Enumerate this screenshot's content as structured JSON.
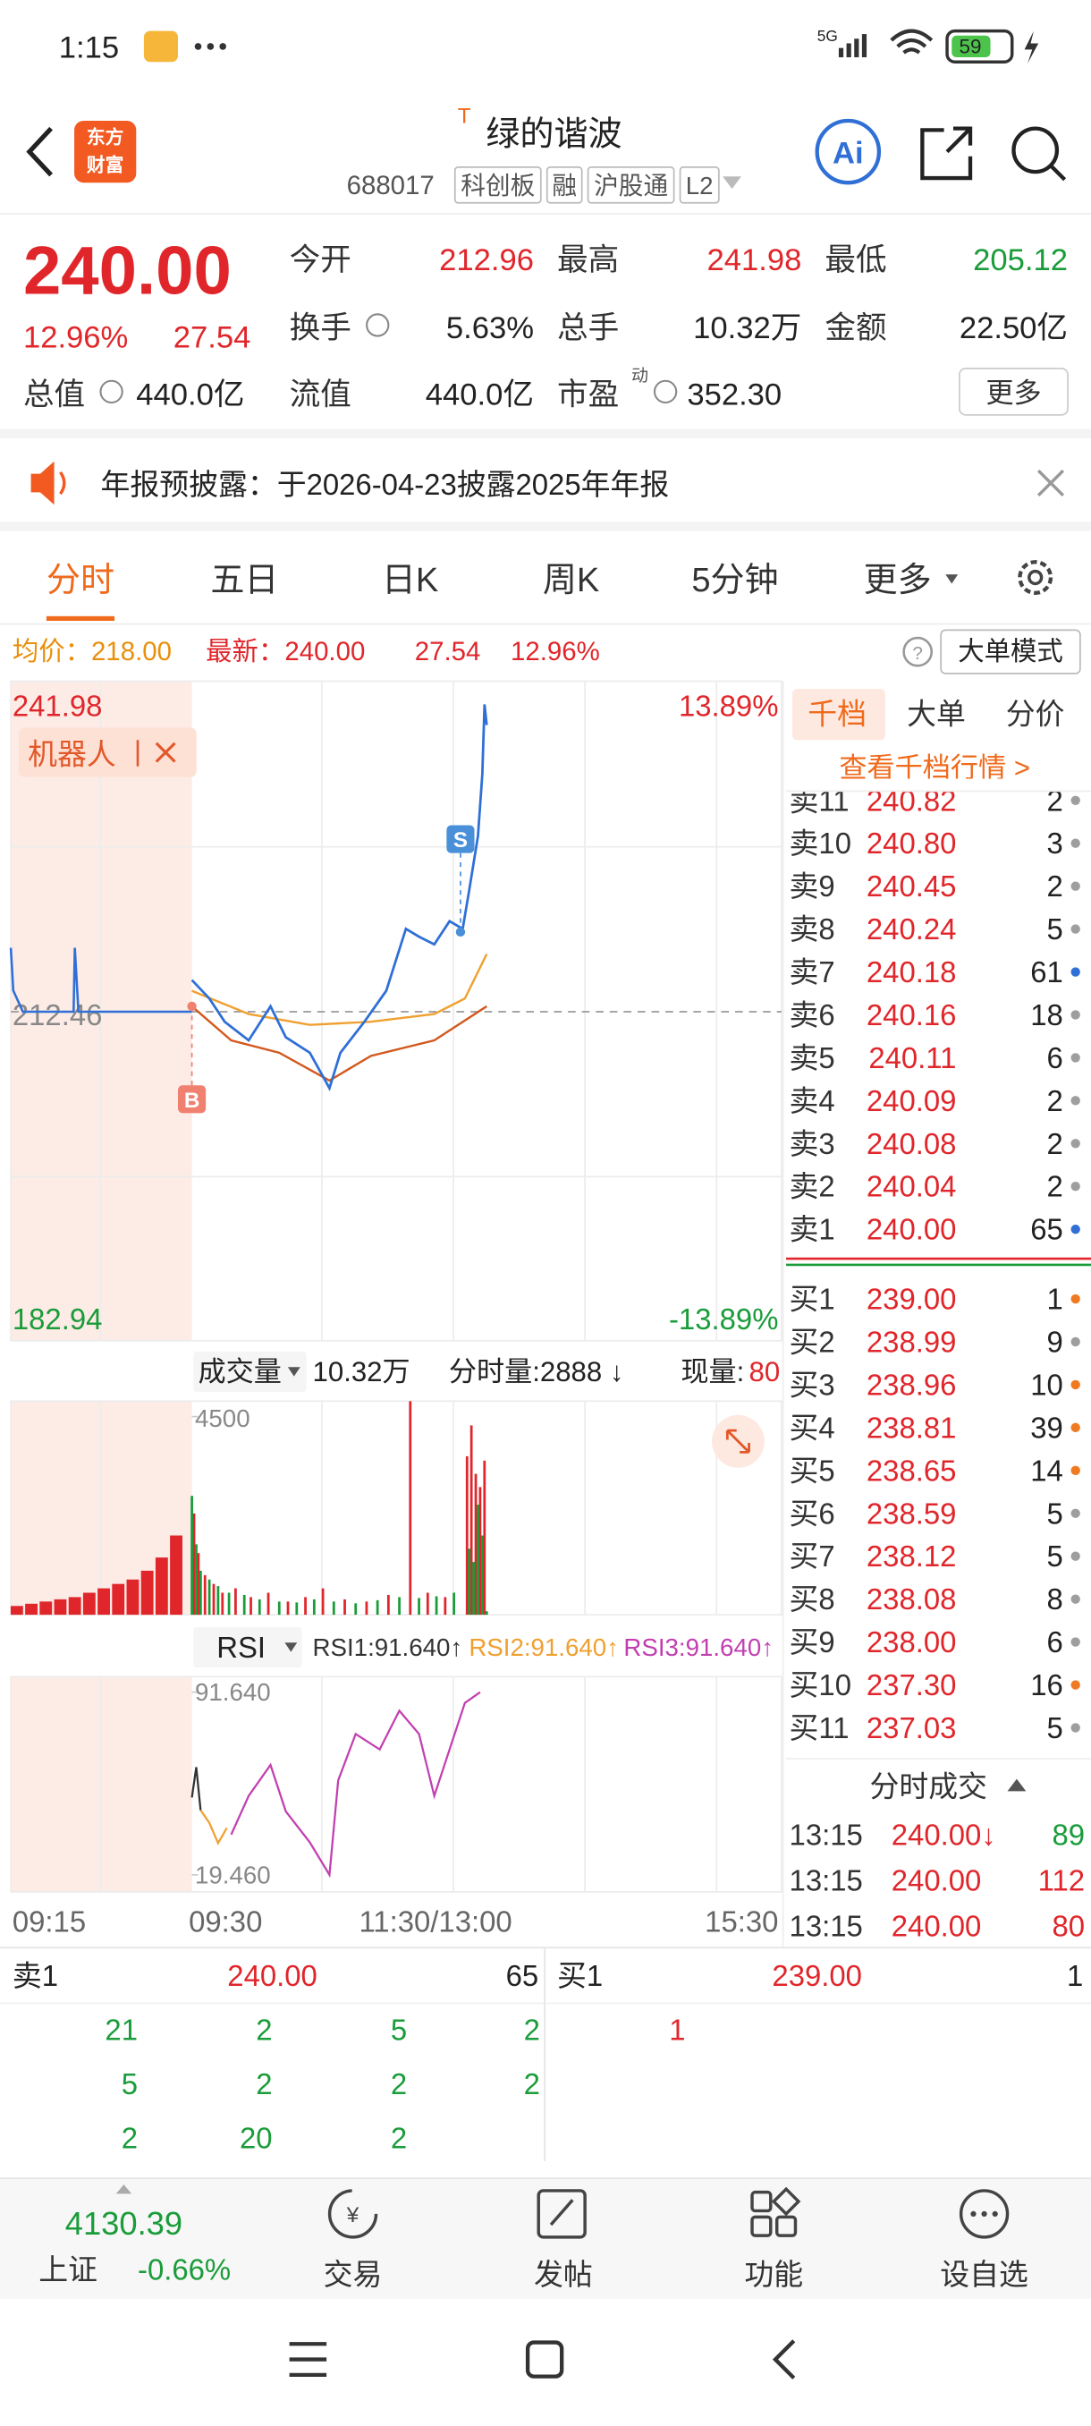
{
  "status_bar": {
    "time": "1:15",
    "network": "5G",
    "battery": "59"
  },
  "header": {
    "logo": [
      "东方",
      "财富"
    ],
    "t_mark": "T",
    "title": "绿的谐波",
    "code": "688017",
    "tags": [
      "科创板",
      "融",
      "沪股通",
      "L2"
    ],
    "ai": "Ai"
  },
  "quote": {
    "price": "240.00",
    "change_pct": "12.96%",
    "change": "27.54",
    "fields": [
      {
        "label": "今开",
        "value": "212.96",
        "color": "#e0262b"
      },
      {
        "label": "最高",
        "value": "241.98",
        "color": "#e0262b"
      },
      {
        "label": "最低",
        "value": "205.12",
        "color": "#1a9c3a"
      },
      {
        "label": "换手",
        "value": "5.63%",
        "color": "#222222",
        "info": true
      },
      {
        "label": "总手",
        "value": "10.32万",
        "color": "#222222"
      },
      {
        "label": "金额",
        "value": "22.50亿",
        "color": "#222222"
      },
      {
        "label": "总值",
        "value": "440.0亿",
        "color": "#222222",
        "info": true
      },
      {
        "label": "流值",
        "value": "440.0亿",
        "color": "#222222"
      },
      {
        "label": "市盈",
        "sup": "动",
        "value": "352.30",
        "color": "#222222",
        "info": true
      }
    ],
    "more": "更多"
  },
  "notice": {
    "text": "年报预披露：于2026-04-23披露2025年年报"
  },
  "tabs": {
    "items": [
      "分时",
      "五日",
      "日K",
      "周K",
      "5分钟",
      "更多"
    ],
    "active": 0
  },
  "info_bar": {
    "avg": "均价：218.00",
    "latest": "最新：240.00",
    "change": "27.54",
    "change_pct": "12.96%",
    "mode": "大单模式"
  },
  "chart_data": [
    {
      "type": "line",
      "xlim": [
        0,
        270
      ],
      "ylim": [
        182.94,
        241.98
      ],
      "prev_close": 212.46,
      "pct_labels": [
        "13.89%",
        "-13.89%"
      ],
      "x_labels": [
        "09:15",
        "09:30",
        "11:30/13:00",
        "15:30"
      ],
      "robot": "机器人",
      "premarket": {
        "xlim": [
          0,
          15
        ],
        "color": "#2f6fd6",
        "x": [
          0,
          0.2,
          1,
          5.2,
          5.3,
          5.6,
          15
        ],
        "values": [
          218.6,
          214.5,
          212.46,
          212.46,
          218.6,
          212.46,
          212.46
        ]
      },
      "series": [
        {
          "color": "#2f6fd6",
          "x": [
            0,
            8,
            15,
            26,
            36,
            43,
            54,
            63,
            68,
            79,
            89,
            98,
            104,
            111,
            118,
            124,
            127,
            131,
            133,
            134,
            135
          ],
          "values": [
            215.51,
            213.73,
            211.5,
            209.71,
            212.98,
            210.01,
            208.52,
            205.12,
            208.52,
            211.5,
            214.47,
            220.42,
            219.67,
            218.93,
            221.16,
            220.42,
            224.14,
            229.34,
            235.29,
            241.98,
            240.0
          ]
        },
        {
          "color": "#f0a030",
          "x": [
            0,
            26,
            54,
            82,
            111,
            125,
            135
          ],
          "values": [
            214.47,
            212.24,
            211.2,
            211.5,
            212.24,
            213.73,
            218.0
          ]
        },
        {
          "color": "#d2591e",
          "x": [
            0,
            18,
            40,
            63,
            82,
            111,
            135
          ],
          "values": [
            212.98,
            209.71,
            208.52,
            205.85,
            208.22,
            209.71,
            212.98
          ]
        }
      ],
      "markers": [
        {
          "label": "B",
          "x": 0,
          "value": 212.98,
          "color": "#f08070",
          "side": "below"
        },
        {
          "label": "S",
          "x": 123,
          "value": 220.12,
          "color": "#4a90d9",
          "side": "above"
        }
      ]
    },
    {
      "type": "bar",
      "name": "成交量",
      "total": "10.32万",
      "period": "分时量:2888 ↓",
      "now_label": "现量:",
      "now_value": "80",
      "xlim": [
        0,
        270
      ],
      "ylim": [
        0,
        4852
      ],
      "yticks": [
        4500
      ],
      "premarket": {
        "xlim": [
          0,
          15
        ],
        "color": "#e0262b",
        "x": [
          0.5,
          1.7,
          2.9,
          4.1,
          5.3,
          6.5,
          7.7,
          8.9,
          10.1,
          11.3,
          12.5,
          13.7
        ],
        "values": [
          200,
          250,
          300,
          350,
          400,
          500,
          600,
          700,
          800,
          1000,
          1300,
          1800
        ]
      },
      "series": [
        {
          "color": "#e0262b",
          "x": [
            1,
            3,
            6,
            10,
            14,
            20,
            27,
            35,
            44,
            52,
            60,
            70,
            80,
            90,
            100,
            108,
            116,
            126,
            128,
            130,
            132,
            134
          ],
          "values": [
            2300,
            1400,
            900,
            700,
            500,
            600,
            400,
            500,
            300,
            400,
            600,
            350,
            300,
            450,
            4850,
            500,
            400,
            3600,
            4300,
            3200,
            2900,
            3500
          ]
        },
        {
          "color": "#1a9c3a",
          "x": [
            0,
            2,
            4,
            8,
            12,
            17,
            24,
            31,
            40,
            48,
            56,
            65,
            75,
            85,
            95,
            104,
            112,
            120,
            127,
            129,
            131,
            133,
            135
          ],
          "values": [
            2700,
            1600,
            1000,
            800,
            650,
            500,
            450,
            350,
            300,
            280,
            350,
            300,
            260,
            330,
            400,
            380,
            420,
            500,
            1500,
            1200,
            2500,
            1800,
            80
          ]
        }
      ]
    },
    {
      "type": "line",
      "name": "RSI",
      "xlim": [
        0,
        270
      ],
      "ylim": [
        12.73,
        97.76
      ],
      "yticks": [
        {
          "value": 91.64,
          "label": "91.640"
        },
        {
          "value": 19.46,
          "label": "19.460"
        }
      ],
      "series": [
        {
          "name": "RSI1:91.640↑",
          "color": "#333333",
          "x": [
            0,
            2,
            4
          ],
          "values": [
            50,
            62,
            45
          ]
        },
        {
          "name": "RSI2:91.640↑",
          "color": "#f0a030",
          "x": [
            4,
            8,
            12,
            16
          ],
          "values": [
            45,
            40,
            32,
            38
          ]
        },
        {
          "name": "RSI3:91.640↑",
          "color": "#c23fb0",
          "x": [
            18,
            26,
            36,
            43,
            54,
            63,
            67,
            75,
            86,
            95,
            104,
            111,
            118,
            125,
            132
          ],
          "values": [
            35.37,
            50.66,
            62.89,
            44.54,
            32.3,
            19.46,
            56.78,
            75.12,
            69.01,
            84.3,
            75.12,
            50.66,
            69.01,
            87.36,
            91.64
          ]
        }
      ]
    }
  ],
  "order_book": {
    "tabs": [
      "千档",
      "大单",
      "分价"
    ],
    "link": "查看千档行情 >",
    "sells": [
      {
        "label": "卖11",
        "price": "240.82",
        "qty": "2",
        "dot": "#9e9e9e"
      },
      {
        "label": "卖10",
        "price": "240.80",
        "qty": "3",
        "dot": "#9e9e9e"
      },
      {
        "label": "卖9",
        "price": "240.45",
        "qty": "2",
        "dot": "#9e9e9e"
      },
      {
        "label": "卖8",
        "price": "240.24",
        "qty": "5",
        "dot": "#9e9e9e"
      },
      {
        "label": "卖7",
        "price": "240.18",
        "qty": "61",
        "dot": "#2f6fd6"
      },
      {
        "label": "卖6",
        "price": "240.16",
        "qty": "18",
        "dot": "#9e9e9e"
      },
      {
        "label": "卖5",
        "price": "240.11",
        "qty": "6",
        "dot": "#9e9e9e"
      },
      {
        "label": "卖4",
        "price": "240.09",
        "qty": "2",
        "dot": "#9e9e9e"
      },
      {
        "label": "卖3",
        "price": "240.08",
        "qty": "2",
        "dot": "#9e9e9e"
      },
      {
        "label": "卖2",
        "price": "240.04",
        "qty": "2",
        "dot": "#9e9e9e"
      },
      {
        "label": "卖1",
        "price": "240.00",
        "qty": "65",
        "dot": "#2f6fd6"
      }
    ],
    "buys": [
      {
        "label": "买1",
        "price": "239.00",
        "qty": "1",
        "dot": "#f07a21"
      },
      {
        "label": "买2",
        "price": "238.99",
        "qty": "9",
        "dot": "#9e9e9e"
      },
      {
        "label": "买3",
        "price": "238.96",
        "qty": "10",
        "dot": "#f07a21"
      },
      {
        "label": "买4",
        "price": "238.81",
        "qty": "39",
        "dot": "#f07a21"
      },
      {
        "label": "买5",
        "price": "238.65",
        "qty": "14",
        "dot": "#f07a21"
      },
      {
        "label": "买6",
        "price": "238.59",
        "qty": "5",
        "dot": "#9e9e9e"
      },
      {
        "label": "买7",
        "price": "238.12",
        "qty": "5",
        "dot": "#9e9e9e"
      },
      {
        "label": "买8",
        "price": "238.08",
        "qty": "8",
        "dot": "#9e9e9e"
      },
      {
        "label": "买9",
        "price": "238.00",
        "qty": "6",
        "dot": "#9e9e9e"
      },
      {
        "label": "买10",
        "price": "237.30",
        "qty": "16",
        "dot": "#f07a21"
      },
      {
        "label": "买11",
        "price": "237.03",
        "qty": "5",
        "dot": "#9e9e9e"
      }
    ]
  },
  "trades": {
    "title": "分时成交",
    "rows": [
      {
        "time": "13:15",
        "price": "240.00↓",
        "qty": "89",
        "qty_color": "#1a9c3a"
      },
      {
        "time": "13:15",
        "price": "240.00",
        "qty": "112",
        "qty_color": "#e0262b"
      },
      {
        "time": "13:15",
        "price": "240.00",
        "qty": "80",
        "qty_color": "#e0262b"
      }
    ]
  },
  "levels": {
    "sell": {
      "label": "卖1",
      "price": "240.00",
      "qty": "65",
      "queue": [
        "21",
        "2",
        "5",
        "2",
        "5",
        "2",
        "2",
        "2",
        "2",
        "20",
        "2"
      ]
    },
    "buy": {
      "label": "买1",
      "price": "239.00",
      "qty": "1",
      "queue": [
        "1"
      ]
    }
  },
  "footer": {
    "index_value": "4130.39",
    "index_name": "上证",
    "index_change": "-0.66%",
    "nav": [
      "交易",
      "发帖",
      "功能",
      "设自选"
    ]
  }
}
